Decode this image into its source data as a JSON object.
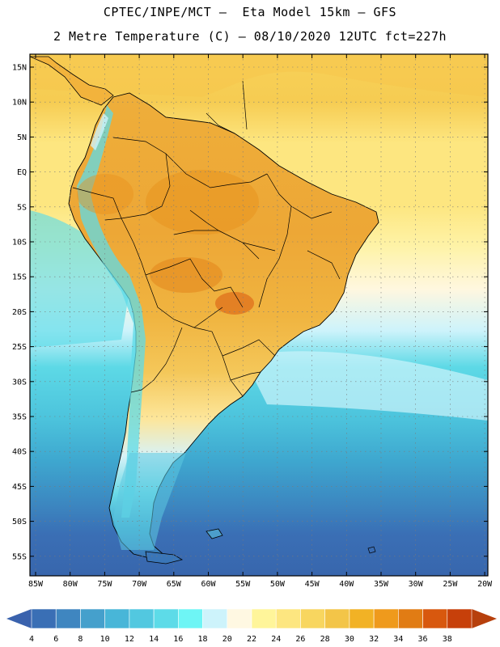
{
  "title_line1": "CPTEC/INPE/MCT –  Eta Model 15km – GFS",
  "title_line2": "2 Metre Temperature (C) – 08/10/2020 12UTC fct=227h",
  "lat_labels": [
    "15N",
    "10N",
    "5N",
    "EQ",
    "5S",
    "10S",
    "15S",
    "20S",
    "25S",
    "30S",
    "35S",
    "40S",
    "45S",
    "50S",
    "55S"
  ],
  "lon_labels": [
    "85W",
    "80W",
    "75W",
    "70W",
    "65W",
    "60W",
    "55W",
    "50W",
    "45W",
    "40W",
    "35W",
    "30W",
    "25W",
    "20W"
  ],
  "colorbar": {
    "ticks": [
      "4",
      "6",
      "8",
      "10",
      "12",
      "14",
      "16",
      "18",
      "20",
      "22",
      "24",
      "26",
      "28",
      "30",
      "32",
      "34",
      "36",
      "38"
    ],
    "colors": [
      "#3a6fb5",
      "#3f86c0",
      "#45a0cc",
      "#48b6d8",
      "#52c8e0",
      "#5ddbe8",
      "#6ef5f5",
      "#cdf3fb",
      "#fff8e2",
      "#fff59a",
      "#fde680",
      "#f8d65f",
      "#f3c548",
      "#f2b225",
      "#ef9a1c",
      "#e17c14",
      "#d8580e",
      "#c7400a"
    ],
    "left_cap": "#3a62ad",
    "right_cap": "#b7400c"
  }
}
